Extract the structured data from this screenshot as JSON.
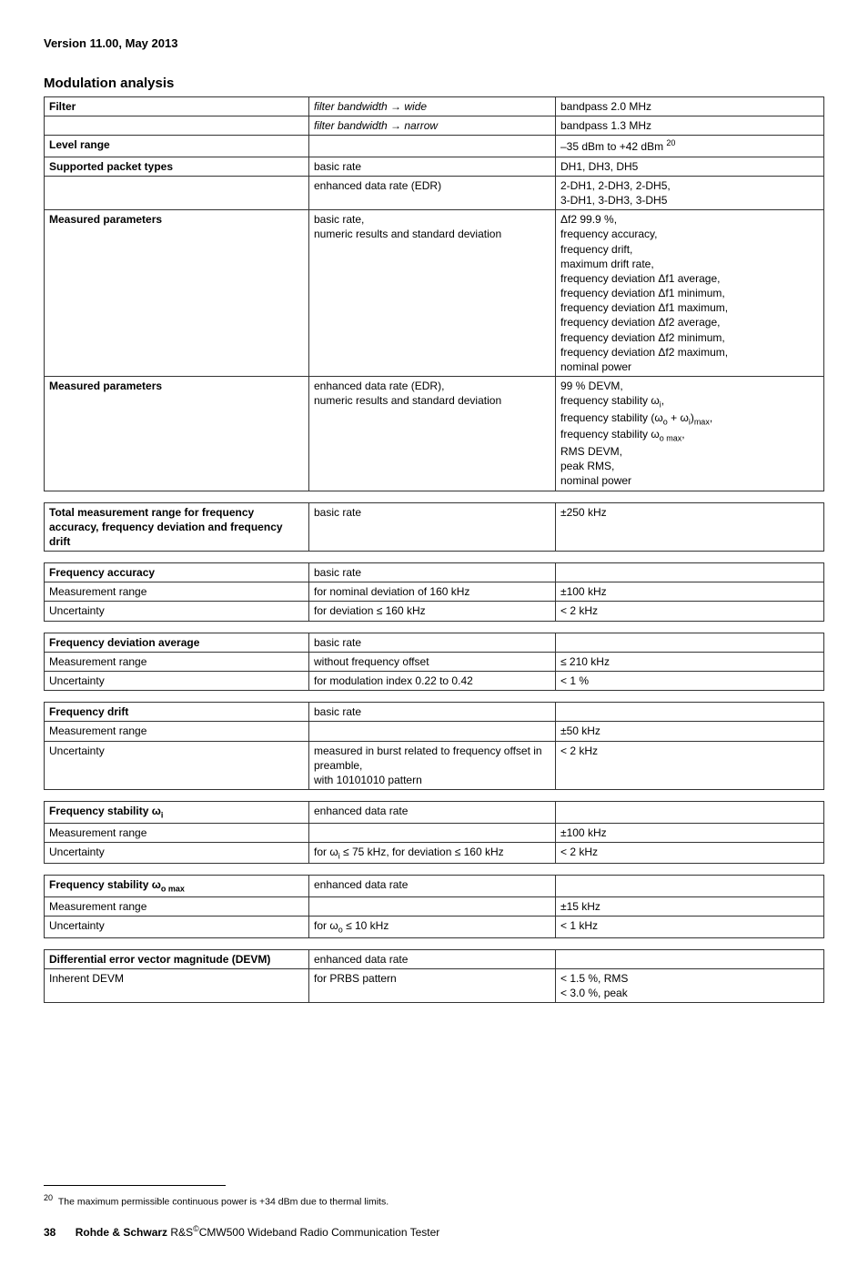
{
  "header": {
    "version": "Version 11.00, May 2013"
  },
  "section": {
    "title": "Modulation analysis"
  },
  "main_rows": [
    {
      "c1": "Filter",
      "c1_bold": true,
      "c2": "filter bandwidth → wide",
      "c2_italic": true,
      "c3": "bandpass 2.0 MHz"
    },
    {
      "c1": "",
      "c2": "filter bandwidth → narrow",
      "c2_italic": true,
      "c3": "bandpass 1.3 MHz"
    },
    {
      "c1": "Level range",
      "c1_bold": true,
      "c2": "",
      "c3_html": "–35 dBm to +42 dBm <span class='sup'>20</span>"
    },
    {
      "c1": "Supported packet types",
      "c1_bold": true,
      "c2": "basic rate",
      "c3": "DH1, DH3, DH5"
    },
    {
      "c1": "",
      "c2": "enhanced data rate (EDR)",
      "c3": "2-DH1, 2-DH3, 2-DH5,\n3-DH1, 3-DH3, 3-DH5"
    },
    {
      "c1": "Measured parameters",
      "c1_bold": true,
      "c2": "basic rate,\nnumeric results and standard deviation",
      "c3": "Δf2 99.9 %,\nfrequency accuracy,\nfrequency drift,\nmaximum drift rate,\nfrequency deviation Δf1 average,\nfrequency deviation Δf1 minimum,\nfrequency deviation Δf1 maximum,\nfrequency deviation Δf2 average,\nfrequency deviation Δf2 minimum,\nfrequency deviation Δf2 maximum,\nnominal power"
    },
    {
      "c1": "Measured parameters",
      "c1_bold": true,
      "c2": "enhanced data rate (EDR),\nnumeric results and standard deviation",
      "c3_html": "99 % DEVM,<br>frequency stability ω<span class='sub'>i</span>,<br>frequency stability (ω<span class='sub'>o</span> + ω<span class='sub'>i</span>)<span class='sub'>max</span>,<br>frequency stability ω<span class='sub'>o max</span>,<br>RMS DEVM,<br>peak RMS,<br>nominal power"
    }
  ],
  "tables": [
    {
      "rows": [
        {
          "c1": "Total measurement range for frequency accuracy, frequency deviation and frequency drift",
          "c1_bold": true,
          "c2": "basic rate",
          "c3": "±250 kHz"
        }
      ]
    },
    {
      "rows": [
        {
          "c1": "Frequency accuracy",
          "c1_bold": true,
          "c2": "basic rate",
          "c3": ""
        },
        {
          "c1": "Measurement range",
          "c2": "for nominal deviation of 160 kHz",
          "c3": "±100 kHz"
        },
        {
          "c1": "Uncertainty",
          "c2": "for deviation ≤ 160 kHz",
          "c3": "< 2 kHz"
        }
      ]
    },
    {
      "rows": [
        {
          "c1": "Frequency deviation average",
          "c1_bold": true,
          "c2": "basic rate",
          "c3": ""
        },
        {
          "c1": "Measurement range",
          "c2": "without frequency offset",
          "c3": "≤ 210 kHz"
        },
        {
          "c1": "Uncertainty",
          "c2": "for modulation index 0.22 to 0.42",
          "c3": "< 1 %"
        }
      ]
    },
    {
      "rows": [
        {
          "c1": "Frequency drift",
          "c1_bold": true,
          "c2": "basic rate",
          "c3": ""
        },
        {
          "c1": "Measurement range",
          "c2": "",
          "c3": "±50 kHz"
        },
        {
          "c1": "Uncertainty",
          "c2": "measured in burst related to frequency offset in preamble,\nwith 10101010 pattern",
          "c3": "< 2 kHz"
        }
      ]
    },
    {
      "rows": [
        {
          "c1_html": "<span class='bold'>Frequency stability ω<span class='sub'>i</span></span>",
          "c2": "enhanced data rate",
          "c3": ""
        },
        {
          "c1": "Measurement range",
          "c2": "",
          "c3": "±100 kHz"
        },
        {
          "c1": "Uncertainty",
          "c2_html": "for ω<span class='sub'>i</span> ≤ 75 kHz, for deviation ≤ 160 kHz",
          "c3": "< 2 kHz"
        }
      ]
    },
    {
      "rows": [
        {
          "c1_html": "<span class='bold'>Frequency stability ω<span class='sub'>o max</span></span>",
          "c2": "enhanced data rate",
          "c3": ""
        },
        {
          "c1": "Measurement range",
          "c2": "",
          "c3": "±15 kHz"
        },
        {
          "c1": "Uncertainty",
          "c2_html": "for ω<span class='sub'>o</span> ≤ 10 kHz",
          "c3": "< 1 kHz"
        }
      ]
    },
    {
      "rows": [
        {
          "c1": "Differential error vector magnitude (DEVM)",
          "c1_bold": true,
          "c2": "enhanced data rate",
          "c3": ""
        },
        {
          "c1": "Inherent DEVM",
          "c2": "for PRBS pattern",
          "c3": "< 1.5 %, RMS\n< 3.0 %, peak"
        }
      ]
    }
  ],
  "footnote": {
    "num": "20",
    "text": "The maximum permissible continuous power is +34 dBm due to thermal limits."
  },
  "footer": {
    "page": "38",
    "company": "Rohde & Schwarz",
    "product": "CMW500 Wideband Radio Communication Tester",
    "rs": "R&S"
  }
}
